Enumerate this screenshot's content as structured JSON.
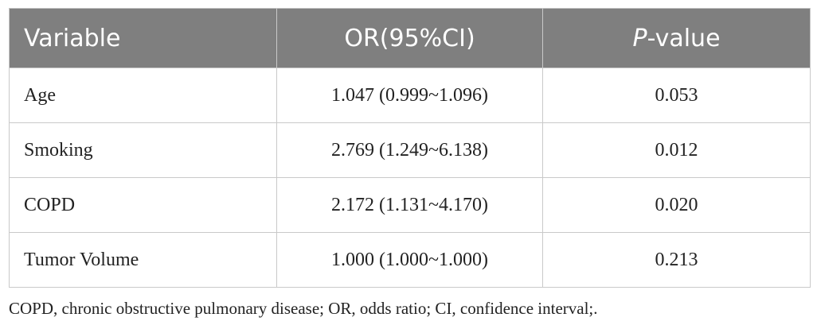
{
  "table": {
    "headers": {
      "variable": "Variable",
      "or_ci": "OR(95%CI)",
      "p_italic": "P",
      "p_rest": "-value"
    },
    "rows": [
      {
        "variable": "Age",
        "or_ci": "1.047 (0.999~1.096)",
        "p": "0.053"
      },
      {
        "variable": "Smoking",
        "or_ci": "2.769 (1.249~6.138)",
        "p": "0.012"
      },
      {
        "variable": "COPD",
        "or_ci": "2.172 (1.131~4.170)",
        "p": "0.020"
      },
      {
        "variable": "Tumor Volume",
        "or_ci": "1.000 (1.000~1.000)",
        "p": "0.213"
      }
    ]
  },
  "footnote": "COPD, chronic obstructive pulmonary disease; OR, odds ratio; CI, confidence interval;.",
  "colors": {
    "header_bg": "#7f7f7f",
    "header_text": "#ffffff",
    "border": "#c9c9c9",
    "body_text": "#222222"
  }
}
